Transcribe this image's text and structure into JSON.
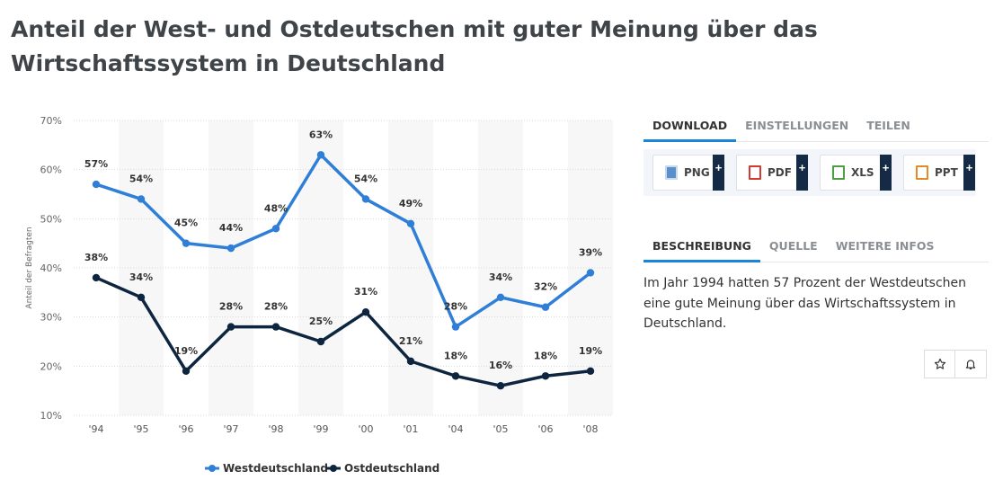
{
  "title": "Anteil der West- und Ostdeutschen mit guter Meinung über das Wirtschaftssystem in Deutschland",
  "chart_data": {
    "type": "line",
    "categories": [
      "'94",
      "'95",
      "'96",
      "'97",
      "'98",
      "'99",
      "'00",
      "'01",
      "'04",
      "'05",
      "'06",
      "'08"
    ],
    "series": [
      {
        "name": "Westdeutschland",
        "color": "#2f7ed8",
        "values": [
          57,
          54,
          45,
          44,
          48,
          63,
          54,
          49,
          28,
          34,
          32,
          39
        ]
      },
      {
        "name": "Ostdeutschland",
        "color": "#0e2540",
        "values": [
          38,
          34,
          19,
          28,
          28,
          25,
          31,
          21,
          18,
          16,
          18,
          19
        ]
      }
    ],
    "ylabel": "Anteil der Befragten",
    "yticks": [
      "10%",
      "20%",
      "30%",
      "40%",
      "50%",
      "60%",
      "70%"
    ],
    "ylim": [
      10,
      70
    ],
    "value_suffix": "%",
    "grid": true,
    "legend_position": "bottom-center"
  },
  "panel": {
    "tabs": [
      {
        "label": "DOWNLOAD",
        "active": true
      },
      {
        "label": "EINSTELLUNGEN",
        "active": false
      },
      {
        "label": "TEILEN",
        "active": false
      }
    ],
    "downloads": [
      {
        "label": "PNG",
        "icon": "png-file-icon",
        "color": "#5b8fc9"
      },
      {
        "label": "PDF",
        "icon": "pdf-file-icon",
        "color": "#d23b32"
      },
      {
        "label": "XLS",
        "icon": "xls-file-icon",
        "color": "#4ca043"
      },
      {
        "label": "PPT",
        "icon": "ppt-file-icon",
        "color": "#e58a2c"
      }
    ],
    "plus_label": "+",
    "info_tabs": [
      {
        "label": "BESCHREIBUNG",
        "active": true
      },
      {
        "label": "QUELLE",
        "active": false
      },
      {
        "label": "WEITERE INFOS",
        "active": false
      }
    ],
    "description": "Im Jahr 1994 hatten 57 Prozent der Westdeutschen eine gute Meinung über das Wirtschaftssystem in Deutschland."
  }
}
